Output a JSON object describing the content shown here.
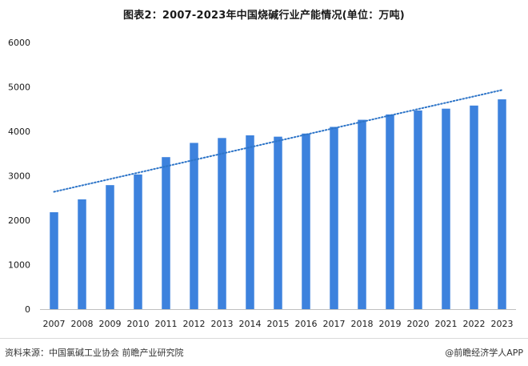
{
  "title": "图表2：2007-2023年中国烧碱行业产能情况(单位：万吨)",
  "source": "资料来源：中国氯碱工业协会 前瞻产业研究院",
  "brand": "@前瞻经济学人APP",
  "colors": {
    "bar": "#3d82dd",
    "trendline": "#2e75c8",
    "axis": "#bfbfbf"
  },
  "chart_data": {
    "type": "bar",
    "categories": [
      "2007",
      "2008",
      "2009",
      "2010",
      "2011",
      "2012",
      "2013",
      "2014",
      "2015",
      "2016",
      "2017",
      "2018",
      "2019",
      "2020",
      "2021",
      "2022",
      "2023"
    ],
    "values": [
      2180,
      2470,
      2790,
      3030,
      3420,
      3740,
      3850,
      3910,
      3880,
      3950,
      4100,
      4260,
      4380,
      4470,
      4510,
      4580,
      4720
    ],
    "yticks": [
      0,
      1000,
      2000,
      3000,
      4000,
      5000,
      6000
    ],
    "ylim": [
      0,
      6000
    ],
    "trendline": {
      "style": "dotted",
      "start_value": 2640,
      "end_value": 4930
    },
    "grid": false,
    "legend": "none"
  }
}
